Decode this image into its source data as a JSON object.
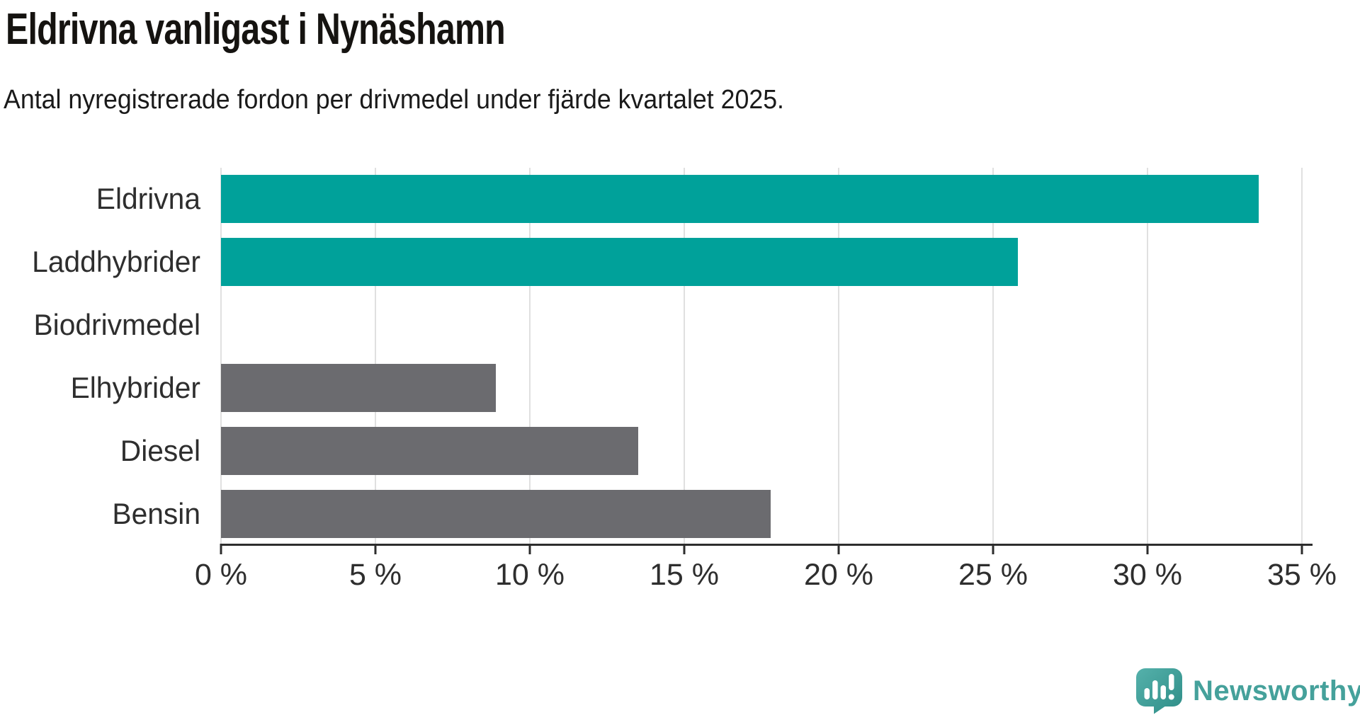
{
  "title": "Eldrivna vanligast i Nynäshamn",
  "subtitle": "Antal nyregistrerade fordon per drivmedel under fjärde kvartalet 2025.",
  "chart_data": {
    "type": "bar",
    "orientation": "horizontal",
    "categories": [
      "Eldrivna",
      "Laddhybrider",
      "Biodrivmedel",
      "Elhybrider",
      "Diesel",
      "Bensin"
    ],
    "values": [
      33.6,
      25.8,
      0,
      8.9,
      13.5,
      17.8
    ],
    "unit": "%",
    "xlim": [
      0,
      35
    ],
    "x_tick_labels": [
      "0 %",
      "5 %",
      "10 %",
      "15 %",
      "20 %",
      "25 %",
      "30 %",
      "35 %"
    ],
    "grid": true,
    "legend": "none",
    "bar_colors": [
      "#00a19a",
      "#00a19a",
      "#6b6b6f",
      "#6b6b6f",
      "#6b6b6f",
      "#6b6b6f"
    ]
  },
  "colors": {
    "highlight_teal": "#00a19a",
    "neutral_gray": "#6b6b6f",
    "gridline": "#e0e0e0",
    "axis": "#2d2d2d",
    "text": "#2e2e2e",
    "brand_teal": "#45a19b"
  },
  "footer": {
    "brand": "Newsworthy",
    "logo_icon": "speech-bubble-bar-chart-icon"
  }
}
